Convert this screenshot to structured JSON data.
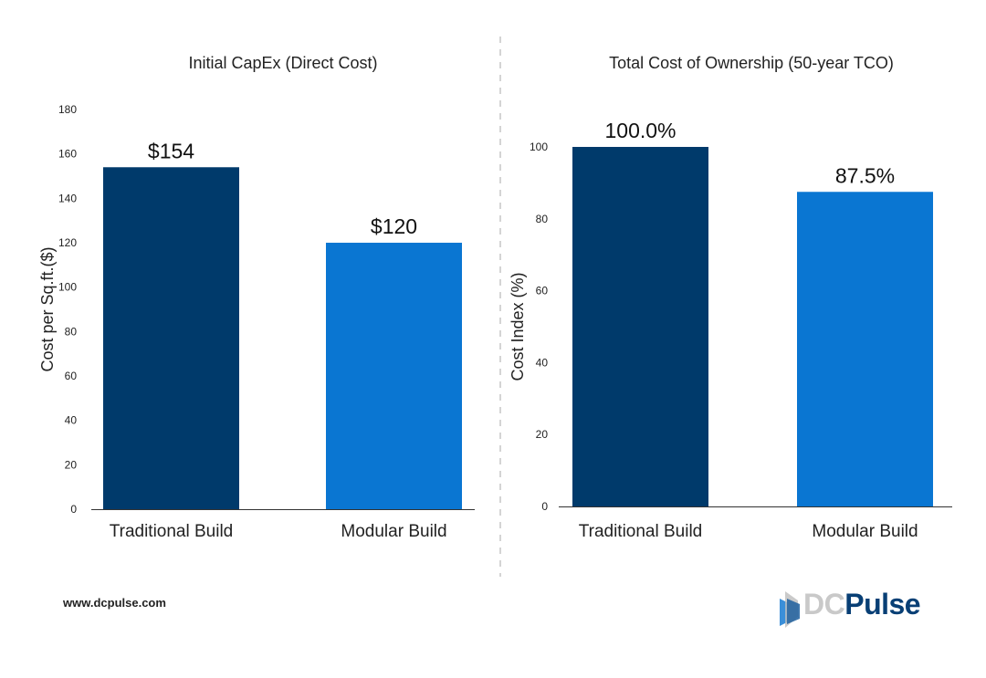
{
  "chart_data": [
    {
      "type": "bar",
      "title": "Initial CapEx (Direct Cost)",
      "xlabel": "",
      "ylabel": "Cost per Sq.ft.($)",
      "categories": [
        "Traditional Build",
        "Modular Build"
      ],
      "values": [
        154,
        120
      ],
      "data_labels": [
        "$154",
        "$120"
      ],
      "colors": [
        "#003a6b",
        "#0a76d2"
      ],
      "ylim": [
        0,
        180
      ],
      "yticks": [
        0,
        20,
        40,
        60,
        80,
        100,
        120,
        140,
        160,
        180
      ],
      "grid": false
    },
    {
      "type": "bar",
      "title": "Total Cost of Ownership (50-year TCO)",
      "xlabel": "",
      "ylabel": "Cost Index (%)",
      "categories": [
        "Traditional Build",
        "Modular Build"
      ],
      "values": [
        100.0,
        87.5
      ],
      "data_labels": [
        "100.0%",
        "87.5%"
      ],
      "colors": [
        "#003a6b",
        "#0a76d2"
      ],
      "ylim": [
        0,
        100
      ],
      "yticks": [
        0,
        20,
        40,
        60,
        80,
        100
      ],
      "grid": false
    }
  ],
  "footer": {
    "website": "www.dcpulse.com",
    "logo": {
      "dc": "DC",
      "pulse": "Pulse"
    }
  }
}
